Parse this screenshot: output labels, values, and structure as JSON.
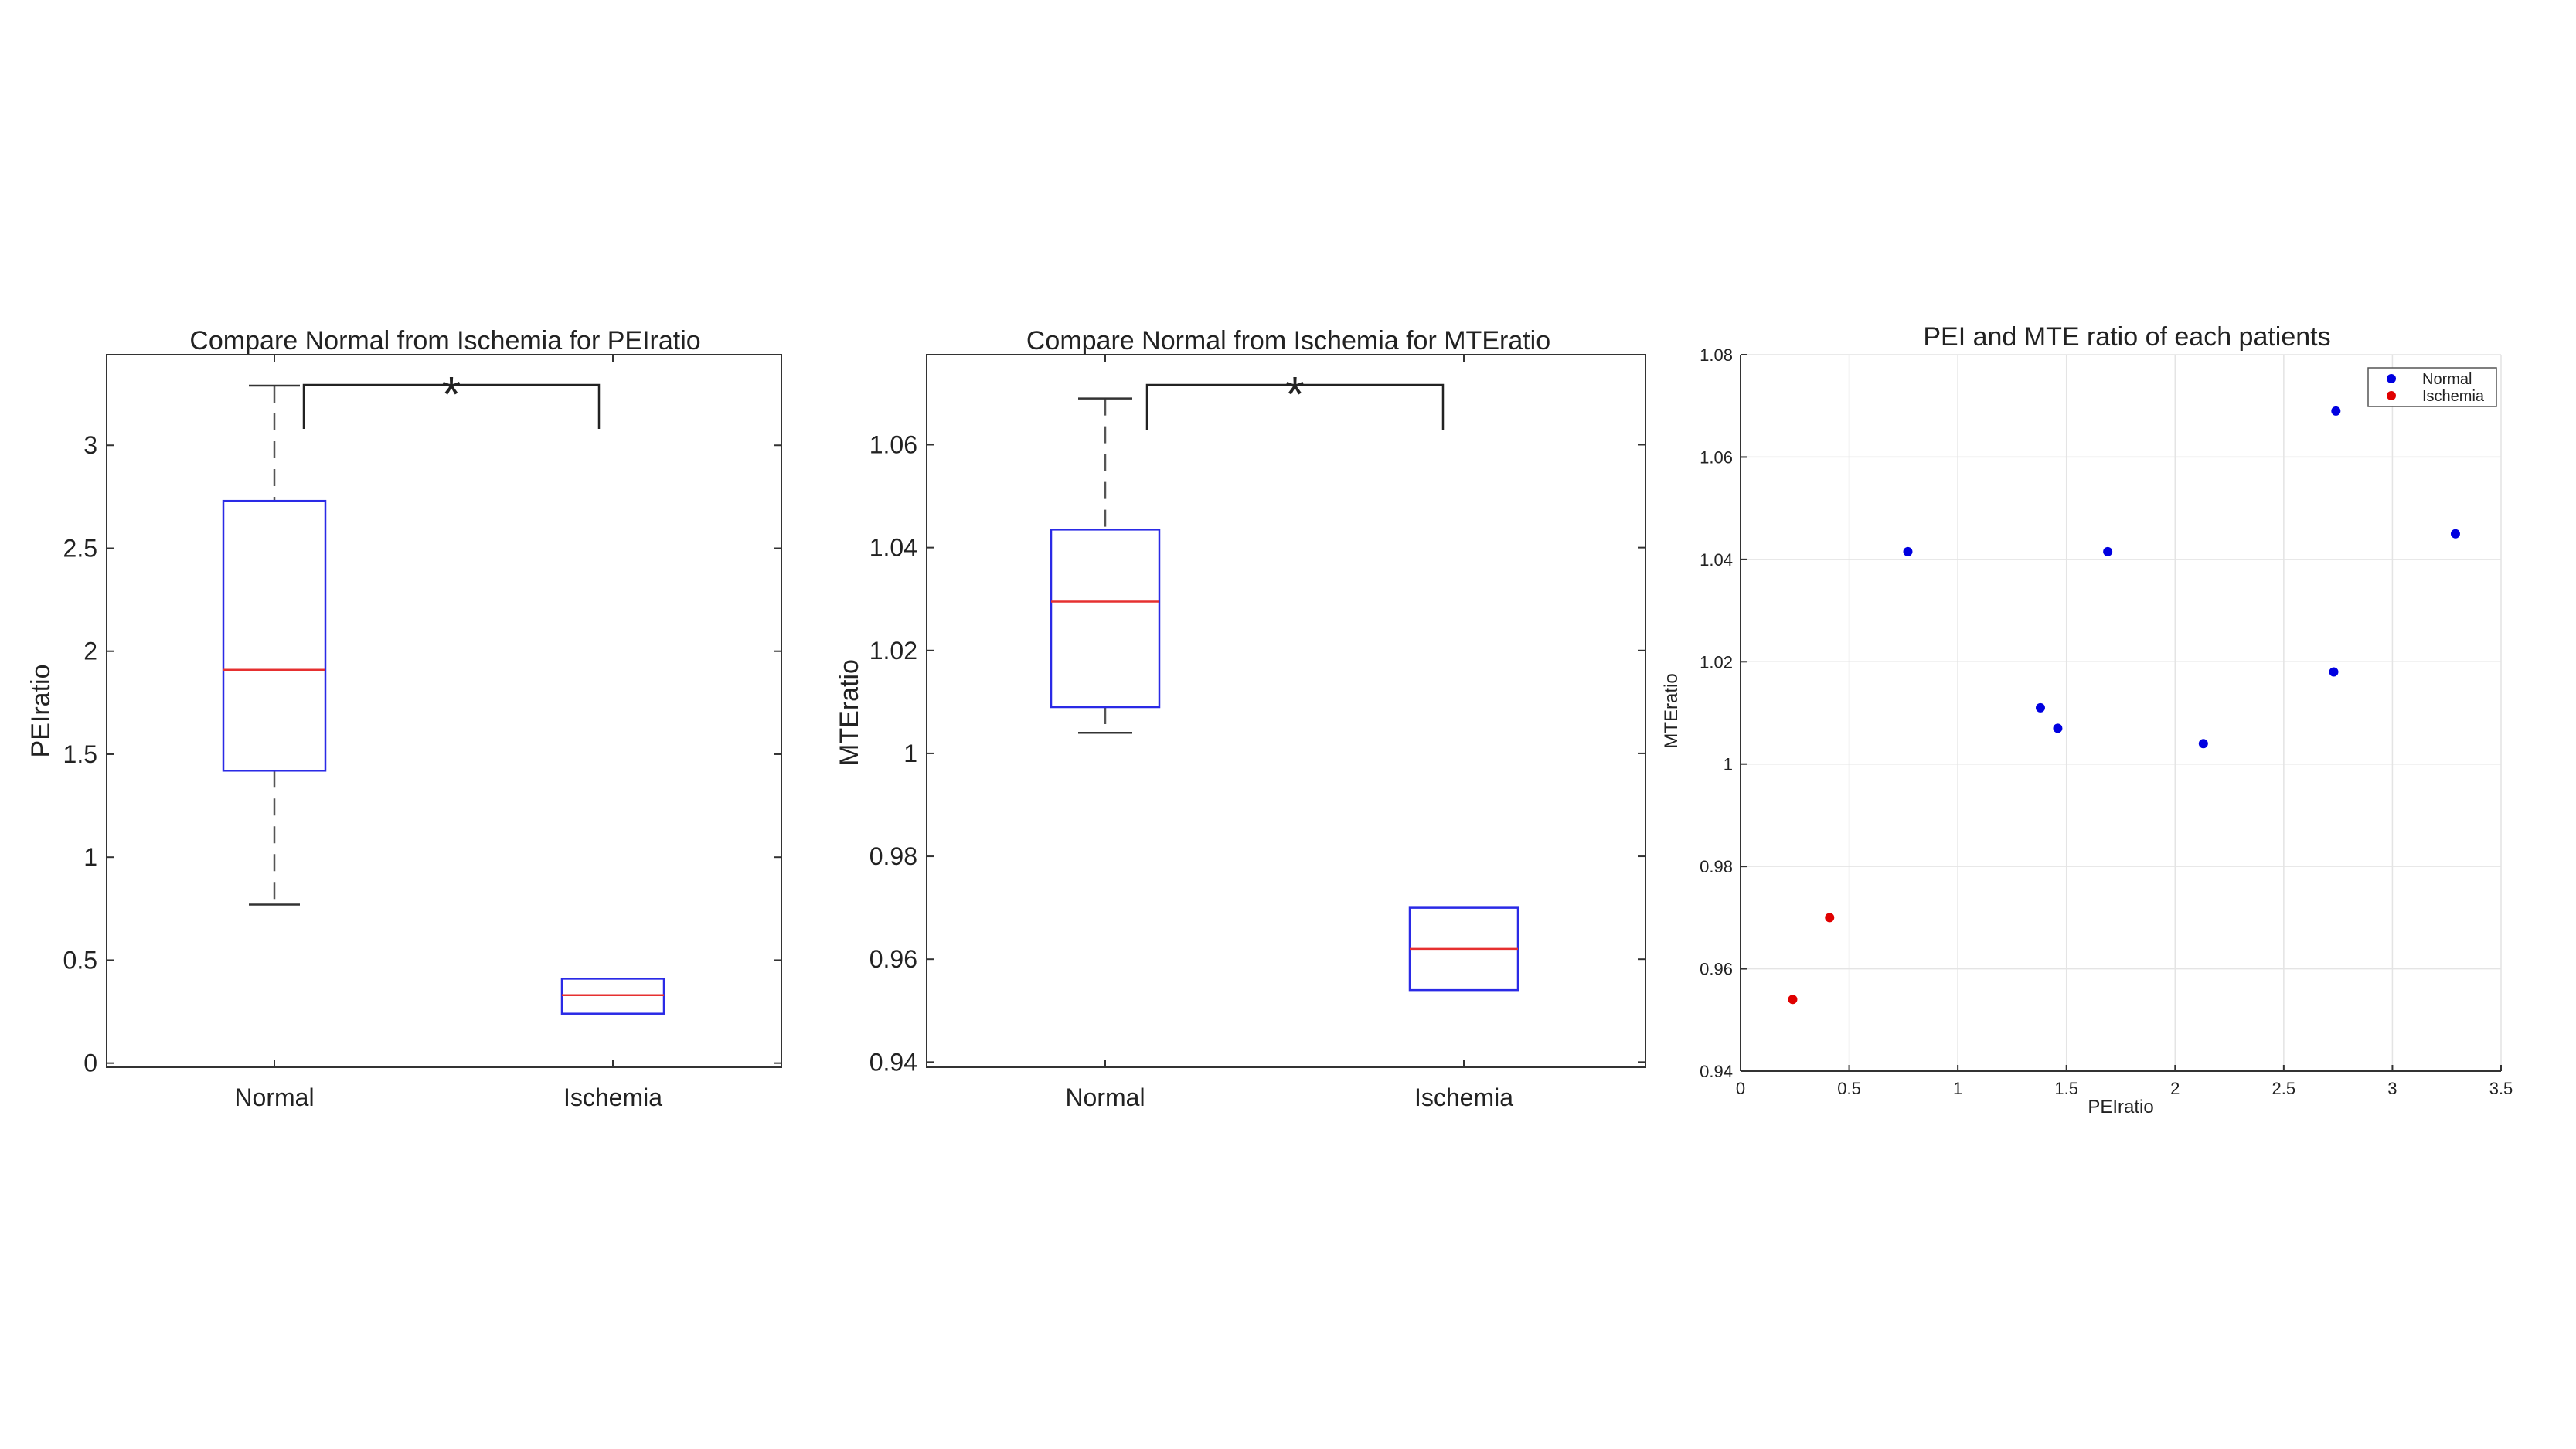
{
  "chart_data": [
    {
      "type": "box",
      "title": "Compare Normal from Ischemia for PEIratio",
      "ylabel": "PEIratio",
      "xlabel": "",
      "categories": [
        "Normal",
        "Ischemia"
      ],
      "ylim": [
        -0.02,
        3.44
      ],
      "yticks": [
        0,
        0.5,
        1,
        1.5,
        2,
        2.5,
        3
      ],
      "ytick_labels": [
        "0",
        "0.5",
        "1",
        "1.5",
        "2",
        "2.5",
        "3"
      ],
      "boxes": [
        {
          "name": "Normal",
          "min": 0.77,
          "q1": 1.42,
          "median": 1.91,
          "q3": 2.73,
          "max": 3.29
        },
        {
          "name": "Ischemia",
          "min": 0.24,
          "q1": 0.24,
          "median": 0.33,
          "q3": 0.41,
          "max": 0.41
        }
      ],
      "significance": {
        "label": "*",
        "from": "Normal",
        "to": "Ischemia"
      },
      "colors": {
        "box": "#2a2ae6",
        "median": "#e63030",
        "whisker": "#555555"
      }
    },
    {
      "type": "box",
      "title": "Compare Normal from Ischemia for MTEratio",
      "ylabel": "MTEratio",
      "xlabel": "",
      "categories": [
        "Normal",
        "Ischemia"
      ],
      "ylim": [
        0.939,
        1.0775
      ],
      "yticks": [
        0.94,
        0.96,
        0.98,
        1,
        1.02,
        1.04,
        1.06
      ],
      "ytick_labels": [
        "0.94",
        "0.96",
        "0.98",
        "1",
        "1.02",
        "1.04",
        "1.06"
      ],
      "boxes": [
        {
          "name": "Normal",
          "min": 1.004,
          "q1": 1.009,
          "median": 1.0295,
          "q3": 1.0435,
          "max": 1.069
        },
        {
          "name": "Ischemia",
          "min": 0.954,
          "q1": 0.954,
          "median": 0.962,
          "q3": 0.97,
          "max": 0.97
        }
      ],
      "significance": {
        "label": "*",
        "from": "Normal",
        "to": "Ischemia"
      },
      "colors": {
        "box": "#2a2ae6",
        "median": "#e63030",
        "whisker": "#555555"
      }
    },
    {
      "type": "scatter",
      "title": "PEI and MTE ratio of each patients",
      "xlabel": "PEIratio",
      "ylabel": "MTEratio",
      "xlim": [
        0,
        3.5
      ],
      "ylim": [
        0.94,
        1.08
      ],
      "xticks": [
        0,
        0.5,
        1,
        1.5,
        2,
        2.5,
        3,
        3.5
      ],
      "xtick_labels": [
        "0",
        "0.5",
        "1",
        "1.5",
        "2",
        "2.5",
        "3",
        "3.5"
      ],
      "yticks": [
        0.94,
        0.96,
        0.98,
        1,
        1.02,
        1.04,
        1.06,
        1.08
      ],
      "ytick_labels": [
        "0.94",
        "0.96",
        "0.98",
        "1",
        "1.02",
        "1.04",
        "1.06",
        "1.08"
      ],
      "grid": true,
      "legend": "top-right",
      "series": [
        {
          "name": "Normal",
          "color": "#0000e0",
          "points": [
            [
              0.77,
              1.0415
            ],
            [
              1.38,
              1.011
            ],
            [
              1.46,
              1.007
            ],
            [
              1.69,
              1.0415
            ],
            [
              2.13,
              1.004
            ],
            [
              2.73,
              1.018
            ],
            [
              2.74,
              1.069
            ],
            [
              3.29,
              1.045
            ]
          ]
        },
        {
          "name": "Ischemia",
          "color": "#e00000",
          "points": [
            [
              0.24,
              0.954
            ],
            [
              0.41,
              0.97
            ]
          ]
        }
      ]
    }
  ]
}
